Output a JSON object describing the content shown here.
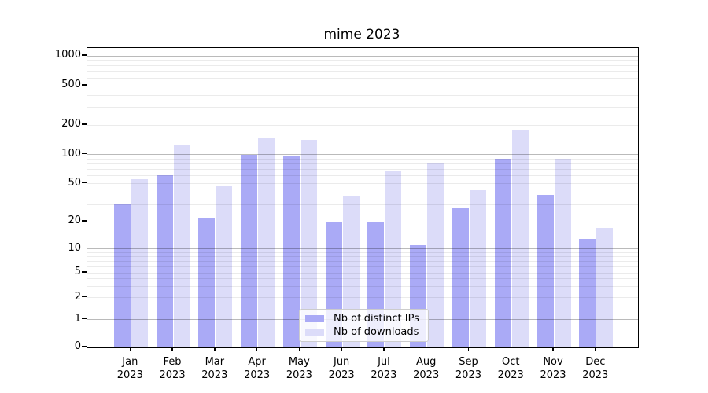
{
  "title": "mime 2023",
  "chart_data": {
    "type": "bar",
    "title": "mime 2023",
    "categories": [
      "Jan 2023",
      "Feb 2023",
      "Mar 2023",
      "Apr 2023",
      "May 2023",
      "Jun 2023",
      "Jul 2023",
      "Aug 2023",
      "Sep 2023",
      "Oct 2023",
      "Nov 2023",
      "Dec 2023"
    ],
    "series": [
      {
        "name": "Nb of distinct IPs",
        "color": "#aaaaf6",
        "values": [
          31,
          61,
          22,
          100,
          97,
          20,
          20,
          11,
          28,
          90,
          38,
          13
        ]
      },
      {
        "name": "Nb of downloads",
        "color": "#dcdcf9",
        "values": [
          56,
          127,
          47,
          150,
          140,
          37,
          68,
          82,
          43,
          180,
          91,
          17
        ]
      }
    ],
    "xlabel": "",
    "ylabel": "",
    "y_ticks": [
      0,
      1,
      2,
      5,
      10,
      20,
      50,
      100,
      200,
      500,
      1000
    ],
    "yscale": "symlog",
    "ylim": [
      0,
      1300
    ],
    "grid": "both",
    "legend_position": "lower center inside"
  },
  "colors": {
    "series_dark": "#aaaaf6",
    "series_light": "#dcdcf9",
    "axis": "#000000",
    "major_grid": "#bababa",
    "minor_grid": "#ebebeb",
    "legend_border": "#cccccc"
  }
}
